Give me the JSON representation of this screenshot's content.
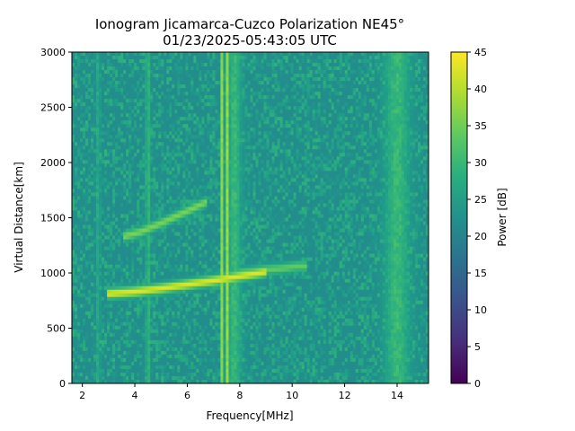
{
  "chart_data": {
    "type": "heatmap",
    "title": "Ionogram Jicamarca-Cuzco Polarization NE45°",
    "subtitle": "01/23/2025-05:43:05 UTC",
    "xlabel": "Frequency[MHz]",
    "ylabel": "Virtual Distance[km]",
    "colorbar_label": "Power [dB]",
    "colormap": "viridis",
    "xlim": [
      1.6,
      15.2
    ],
    "ylim": [
      0,
      3000
    ],
    "clim": [
      0,
      45
    ],
    "x_ticks": [
      2,
      4,
      6,
      8,
      10,
      12,
      14
    ],
    "x_tick_labels": [
      "2",
      "4",
      "6",
      "8",
      "10",
      "12",
      "14"
    ],
    "y_ticks": [
      0,
      500,
      1000,
      1500,
      2000,
      2500,
      3000
    ],
    "y_tick_labels": [
      "0",
      "500",
      "1000",
      "1500",
      "2000",
      "2500",
      "3000"
    ],
    "colorbar_ticks": [
      0,
      5,
      10,
      15,
      20,
      25,
      30,
      35,
      40,
      45
    ],
    "colorbar_tick_labels": [
      "0",
      "5",
      "10",
      "15",
      "20",
      "25",
      "30",
      "35",
      "40",
      "45"
    ],
    "background_power_db": 22,
    "vertical_bands": [
      {
        "freq": 2.6,
        "width": 0.08,
        "power": 27
      },
      {
        "freq": 4.5,
        "width": 0.08,
        "power": 30
      },
      {
        "freq": 7.35,
        "width": 0.05,
        "power": 44
      },
      {
        "freq": 7.5,
        "width": 0.05,
        "power": 42
      },
      {
        "freq": 7.8,
        "width": 0.25,
        "power": 30
      },
      {
        "freq": 14.0,
        "width": 0.45,
        "power": 30
      }
    ],
    "echo_traces": [
      {
        "name": "first-hop",
        "freq": [
          2.9,
          4.0,
          5.0,
          6.0,
          7.0,
          8.0,
          9.0
        ],
        "distance": [
          810,
          830,
          860,
          895,
          930,
          970,
          1010
        ],
        "power": 43
      },
      {
        "name": "first-hop-spread",
        "freq": [
          8.0,
          8.4,
          9.0,
          9.6,
          10.2,
          10.6
        ],
        "distance": [
          1000,
          1010,
          1030,
          1040,
          1060,
          1060
        ],
        "power": 34
      },
      {
        "name": "second-hop",
        "freq": [
          3.6,
          4.2,
          5.0,
          6.0,
          6.8
        ],
        "distance": [
          1330,
          1370,
          1450,
          1560,
          1650
        ],
        "power": 36
      }
    ]
  }
}
